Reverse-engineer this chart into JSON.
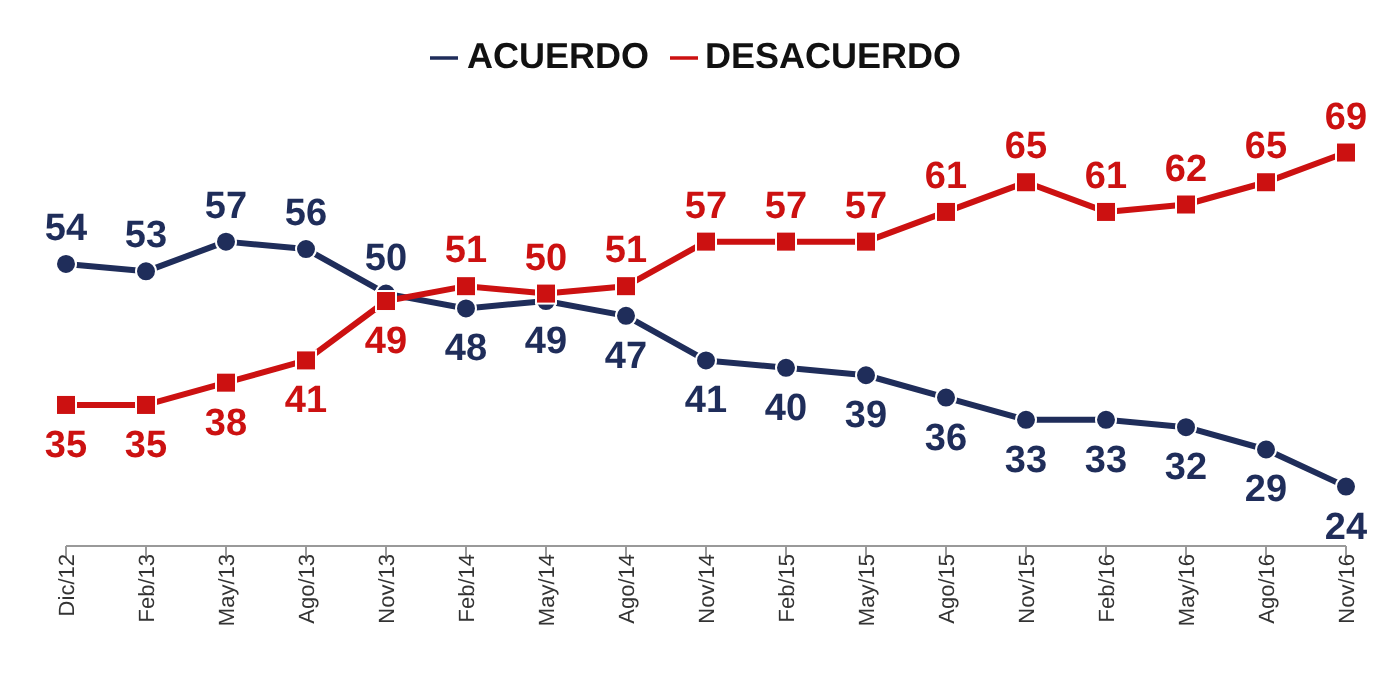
{
  "chart_data": {
    "type": "line",
    "categories": [
      "Dic/12",
      "Feb/13",
      "May/13",
      "Ago/13",
      "Nov/13",
      "Feb/14",
      "May/14",
      "Ago/14",
      "Nov/14",
      "Feb/15",
      "May/15",
      "Ago/15",
      "Nov/15",
      "Feb/16",
      "May/16",
      "Ago/16",
      "Nov/16"
    ],
    "series": [
      {
        "name": "ACUERDO",
        "color": "#1f2d5a",
        "marker": "circle",
        "values": [
          54,
          53,
          57,
          56,
          50,
          48,
          49,
          47,
          41,
          40,
          39,
          36,
          33,
          33,
          32,
          29,
          24
        ]
      },
      {
        "name": "DESACUERDO",
        "color": "#cc1111",
        "marker": "square",
        "values": [
          35,
          35,
          38,
          41,
          49,
          51,
          50,
          51,
          57,
          57,
          57,
          61,
          65,
          61,
          62,
          65,
          69
        ]
      }
    ],
    "data_labels": true,
    "legend": "top"
  }
}
